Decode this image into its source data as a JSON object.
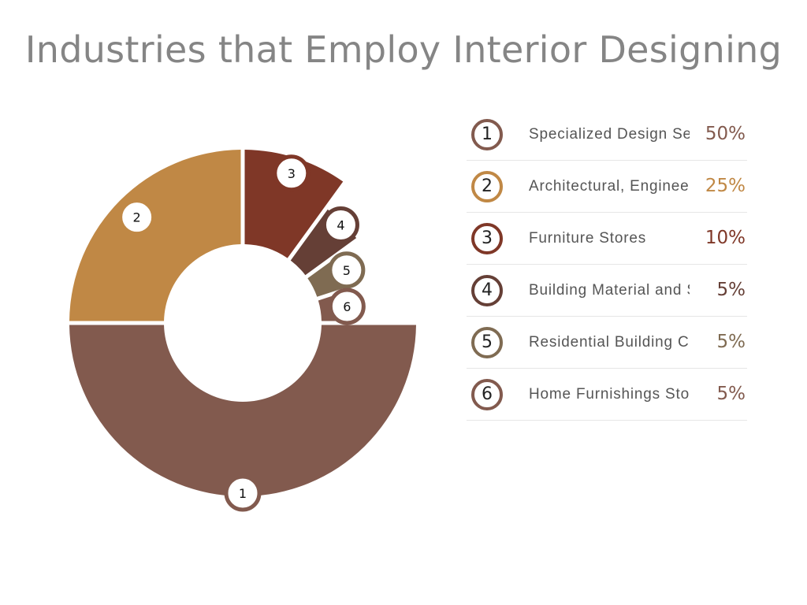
{
  "chart_data": {
    "type": "pie",
    "title": "Industries that Employ Interior Designing",
    "categories": [
      "Specialized Design Services",
      "Architectural, Engineering and Related Services",
      "Furniture Stores",
      "Building Material and Supplies Dealers",
      "Residential Building Construction",
      "Home Furnishings Stores"
    ],
    "labels": [
      "1",
      "2",
      "3",
      "4",
      "5",
      "6"
    ],
    "values": [
      50,
      25,
      10,
      5,
      5,
      5
    ],
    "value_labels": [
      "50%",
      "25%",
      "10%",
      "5%",
      "5%",
      "5%"
    ],
    "colors": [
      "#825a4e",
      "#c08845",
      "#7f3727",
      "#653f36",
      "#7f6b52",
      "#825a4e"
    ],
    "legend_placement": "right"
  }
}
